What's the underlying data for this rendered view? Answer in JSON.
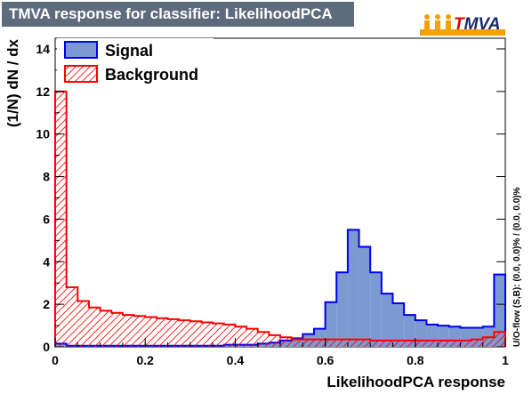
{
  "colors": {
    "title_bg": "#5d6b7d",
    "signal_fill": "#7d99d1",
    "signal_line": "#0000ee",
    "background_line": "#ff0000"
  },
  "logo": {
    "text_prefix": "T",
    "text_rest": "MVA"
  },
  "chart_data": {
    "type": "histogram",
    "title": "TMVA response for classifier: LikelihoodPCA",
    "xlabel": "LikelihoodPCA response",
    "ylabel": "(1/N)  dN  /  dx",
    "side_note": "U/O-flow (S,B): (0.0, 0.0)% / (0.0, 0.0)%",
    "xlim": [
      0,
      1
    ],
    "ylim": [
      0,
      14.5
    ],
    "xticks": [
      "0",
      "0.2",
      "0.4",
      "0.6",
      "0.8",
      "1"
    ],
    "yticks": [
      "0",
      "2",
      "4",
      "6",
      "8",
      "10",
      "12",
      "14"
    ],
    "legend_position": "top-left",
    "bin_edges": [
      0,
      0.025,
      0.05,
      0.075,
      0.1,
      0.125,
      0.15,
      0.175,
      0.2,
      0.225,
      0.25,
      0.275,
      0.3,
      0.325,
      0.35,
      0.375,
      0.4,
      0.425,
      0.45,
      0.475,
      0.5,
      0.525,
      0.55,
      0.575,
      0.6,
      0.625,
      0.65,
      0.675,
      0.7,
      0.725,
      0.75,
      0.775,
      0.8,
      0.825,
      0.85,
      0.875,
      0.9,
      0.925,
      0.95,
      0.975,
      1.0
    ],
    "series": [
      {
        "name": "Signal",
        "values": [
          0.15,
          0.05,
          0.05,
          0.05,
          0.05,
          0.05,
          0.05,
          0.05,
          0.05,
          0.05,
          0.05,
          0.05,
          0.05,
          0.05,
          0.05,
          0.1,
          0.1,
          0.1,
          0.15,
          0.2,
          0.3,
          0.4,
          0.6,
          0.85,
          2.1,
          3.5,
          5.5,
          4.7,
          3.5,
          2.5,
          2.05,
          1.5,
          1.25,
          1.05,
          1.0,
          0.95,
          0.9,
          0.9,
          0.95,
          3.4
        ]
      },
      {
        "name": "Background",
        "values": [
          12.0,
          2.8,
          2.15,
          1.85,
          1.7,
          1.6,
          1.5,
          1.45,
          1.4,
          1.35,
          1.3,
          1.25,
          1.2,
          1.15,
          1.1,
          1.05,
          0.95,
          0.85,
          0.7,
          0.55,
          0.45,
          0.35,
          0.35,
          0.35,
          0.35,
          0.35,
          0.35,
          0.35,
          0.3,
          0.3,
          0.3,
          0.3,
          0.3,
          0.3,
          0.3,
          0.3,
          0.3,
          0.35,
          0.45,
          0.7
        ]
      }
    ]
  }
}
